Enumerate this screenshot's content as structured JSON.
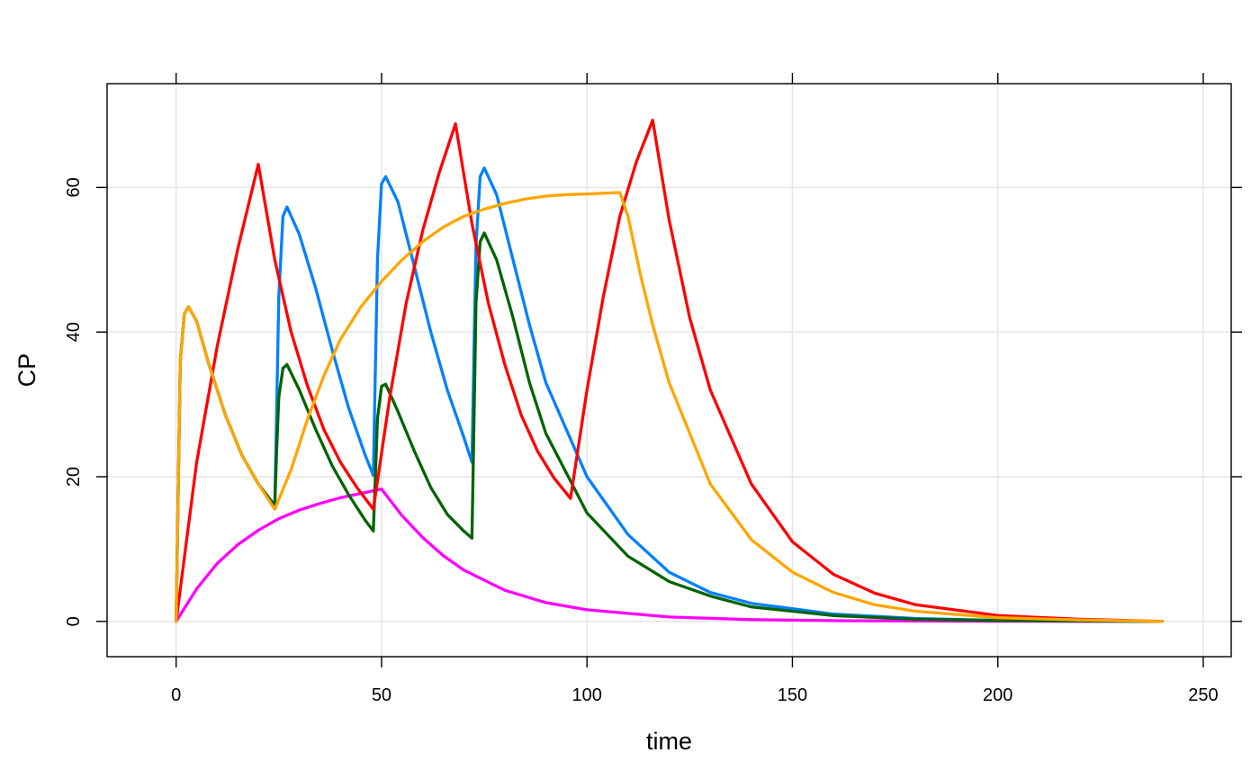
{
  "chart_data": {
    "type": "line",
    "title": "",
    "xlabel": "time",
    "ylabel": "CP",
    "xlim": [
      -16.8,
      256.8
    ],
    "ylim": [
      -4.88,
      74.35
    ],
    "xticks": [
      0,
      50,
      100,
      150,
      200,
      250
    ],
    "yticks": [
      0,
      20,
      40,
      60
    ],
    "xtick_labels": [
      "0",
      "50",
      "100",
      "150",
      "200",
      "250"
    ],
    "ytick_labels": [
      "0",
      "20",
      "40",
      "60"
    ],
    "grid": true,
    "series": [
      {
        "color": "#FF00FF",
        "x": [
          0,
          5,
          10,
          15,
          20,
          25,
          30,
          35,
          40,
          45,
          50,
          55,
          60,
          65,
          70,
          80,
          90,
          100,
          120,
          140,
          160,
          180,
          200,
          220,
          240
        ],
        "y": [
          0,
          4.5,
          8.0,
          10.6,
          12.6,
          14.2,
          15.4,
          16.3,
          17.1,
          17.7,
          18.3,
          14.6,
          11.6,
          9.1,
          7.1,
          4.3,
          2.6,
          1.6,
          0.6,
          0.25,
          0.1,
          0.04,
          0.02,
          0.01,
          0
        ]
      },
      {
        "color": "#0080FF",
        "x": [
          0,
          1,
          2,
          3,
          5,
          8,
          12,
          16,
          20,
          24,
          24.5,
          25,
          26,
          27,
          30,
          34,
          38,
          42,
          46,
          48,
          48.5,
          49,
          50,
          51,
          54,
          58,
          62,
          66,
          70,
          72,
          72.5,
          73,
          74,
          75,
          78,
          82,
          86,
          90,
          100,
          110,
          120,
          130,
          140,
          160,
          180,
          200,
          220,
          240
        ],
        "y": [
          0,
          36,
          42.5,
          43.5,
          41.5,
          35.5,
          28.5,
          23.0,
          19.0,
          16.0,
          30,
          45,
          56,
          57.3,
          53.5,
          46,
          37.5,
          29.5,
          23,
          20.2,
          35,
          50,
          60.5,
          61.5,
          58,
          49,
          40,
          32,
          25.5,
          22,
          38,
          52,
          61.5,
          62.7,
          59,
          50,
          41,
          33,
          20,
          12,
          6.8,
          4.0,
          2.5,
          1.0,
          0.4,
          0.15,
          0.05,
          0
        ]
      },
      {
        "color": "#006400",
        "x": [
          0,
          1,
          2,
          3,
          5,
          8,
          12,
          16,
          20,
          24,
          24.5,
          25,
          26,
          27,
          30,
          34,
          38,
          42,
          46,
          48,
          48.5,
          49,
          50,
          51,
          54,
          58,
          62,
          66,
          70,
          72,
          72.5,
          73,
          74,
          75,
          78,
          82,
          86,
          90,
          100,
          110,
          120,
          130,
          140,
          160,
          180,
          200,
          220,
          240
        ],
        "y": [
          0,
          36,
          42.5,
          43.5,
          41.5,
          35.5,
          28.5,
          23.0,
          19.0,
          16.0,
          24,
          31,
          35,
          35.5,
          32,
          26.5,
          21.5,
          17.5,
          14,
          12.5,
          20,
          28,
          32.5,
          32.8,
          29,
          23.5,
          18.5,
          14.8,
          12.5,
          11.5,
          28,
          44,
          52.5,
          53.7,
          50,
          42,
          33,
          26,
          15,
          9,
          5.5,
          3.5,
          2.0,
          0.8,
          0.3,
          0.12,
          0.04,
          0
        ]
      },
      {
        "color": "#FF0000",
        "x": [
          0,
          5,
          10,
          15,
          20,
          24,
          28,
          32,
          36,
          40,
          44,
          48,
          52,
          56,
          60,
          64,
          68,
          72,
          76,
          80,
          84,
          88,
          92,
          96,
          100,
          104,
          108,
          112,
          116,
          120,
          125,
          130,
          140,
          150,
          160,
          170,
          180,
          200,
          220,
          240
        ],
        "y": [
          0,
          22,
          38,
          51.5,
          63.2,
          50,
          40,
          32.5,
          26.5,
          22,
          18.5,
          15.5,
          31,
          44,
          54,
          62,
          68.8,
          55,
          44,
          35.5,
          28.5,
          23.5,
          19.8,
          17,
          32,
          45,
          56,
          63.5,
          69.3,
          55.5,
          42,
          32,
          19,
          11,
          6.5,
          3.9,
          2.3,
          0.8,
          0.3,
          0
        ]
      },
      {
        "color": "#FFA500",
        "x": [
          0,
          1,
          2,
          3,
          5,
          8,
          12,
          16,
          20,
          24,
          28,
          32,
          36,
          40,
          45,
          50,
          55,
          60,
          65,
          70,
          75,
          80,
          85,
          90,
          95,
          100,
          104,
          108,
          110,
          113,
          116,
          120,
          130,
          140,
          150,
          160,
          170,
          180,
          200,
          220,
          240
        ],
        "y": [
          0,
          36,
          42.5,
          43.5,
          41.5,
          35.5,
          28.5,
          23.0,
          19.0,
          15.5,
          21,
          28,
          34,
          39,
          43.5,
          47,
          50,
          52.5,
          54.5,
          56,
          57,
          57.8,
          58.4,
          58.8,
          59.0,
          59.1,
          59.2,
          59.3,
          56,
          48,
          41,
          33,
          19,
          11.3,
          6.8,
          4.0,
          2.3,
          1.4,
          0.5,
          0.2,
          0
        ]
      }
    ]
  }
}
